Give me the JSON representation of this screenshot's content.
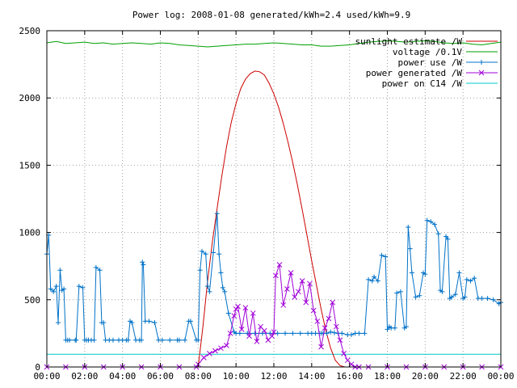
{
  "chart_data": {
    "type": "line",
    "title": "Power log: 2008-01-08 generated/kWh=2.4 used/kWh=9.9",
    "xlabel": "",
    "ylabel": "",
    "xlim": [
      0,
      24
    ],
    "ylim": [
      0,
      2500
    ],
    "grid": true,
    "legend_position": "top-right",
    "x_tick_values": [
      0,
      2,
      4,
      6,
      8,
      10,
      12,
      14,
      16,
      18,
      20,
      22,
      24
    ],
    "x_tick_labels": [
      "00:00",
      "02:00",
      "04:00",
      "06:00",
      "08:00",
      "10:00",
      "12:00",
      "14:00",
      "16:00",
      "18:00",
      "20:00",
      "22:00",
      "00:00"
    ],
    "y_tick_values": [
      0,
      500,
      1000,
      1500,
      2000,
      2500
    ],
    "y_tick_labels": [
      "0",
      "500",
      "1000",
      "1500",
      "2000",
      "2500"
    ],
    "series": [
      {
        "name": "sunlight estimate /W",
        "color": "#cc0000",
        "marker": "none",
        "x": [
          0,
          7.9,
          8.0,
          8.25,
          8.5,
          8.75,
          9.0,
          9.25,
          9.5,
          9.75,
          10.0,
          10.25,
          10.5,
          10.75,
          11.0,
          11.25,
          11.5,
          11.75,
          12.0,
          12.25,
          12.5,
          12.75,
          13.0,
          13.25,
          13.5,
          13.75,
          14.0,
          14.25,
          14.5,
          14.75,
          15.0,
          15.25,
          15.5,
          15.75,
          16.0,
          16.1,
          24
        ],
        "y": [
          0,
          0,
          0,
          300,
          640,
          930,
          1180,
          1420,
          1640,
          1820,
          1960,
          2070,
          2140,
          2180,
          2200,
          2195,
          2170,
          2110,
          2030,
          1930,
          1810,
          1670,
          1520,
          1350,
          1170,
          980,
          790,
          610,
          430,
          270,
          140,
          50,
          10,
          0,
          0,
          0,
          0
        ]
      },
      {
        "name": "voltage /0.1V",
        "color": "#00a000",
        "marker": "none",
        "x": [
          0,
          0.5,
          1,
          1.5,
          2,
          2.5,
          3,
          3.5,
          4,
          4.5,
          5,
          5.5,
          6,
          6.5,
          7,
          7.5,
          8,
          8.5,
          9,
          9.5,
          10,
          10.5,
          11,
          11.5,
          12,
          12.5,
          13,
          13.5,
          14,
          14.5,
          15,
          15.5,
          16,
          16.5,
          17,
          17.5,
          18,
          18.5,
          19,
          19.5,
          20,
          20.5,
          21,
          21.5,
          22,
          22.5,
          23,
          23.5,
          24
        ],
        "y": [
          2410,
          2420,
          2405,
          2410,
          2415,
          2405,
          2410,
          2400,
          2405,
          2410,
          2405,
          2400,
          2410,
          2405,
          2395,
          2390,
          2385,
          2380,
          2385,
          2390,
          2395,
          2400,
          2400,
          2405,
          2410,
          2405,
          2400,
          2395,
          2395,
          2385,
          2385,
          2390,
          2395,
          2405,
          2415,
          2420,
          2425,
          2420,
          2415,
          2420,
          2425,
          2420,
          2410,
          2405,
          2410,
          2400,
          2395,
          2405,
          2415
        ]
      },
      {
        "name": "power use /W",
        "color": "#0072c8",
        "marker": "plus",
        "x": [
          0,
          0.1,
          0.2,
          0.35,
          0.5,
          0.6,
          0.7,
          0.8,
          0.9,
          1.0,
          1.1,
          1.2,
          1.5,
          1.55,
          1.7,
          1.9,
          2.0,
          2.1,
          2.2,
          2.35,
          2.5,
          2.6,
          2.8,
          2.9,
          3.0,
          3.1,
          3.3,
          3.5,
          3.8,
          4.0,
          4.2,
          4.3,
          4.4,
          4.5,
          4.7,
          4.9,
          5.0,
          5.05,
          5.1,
          5.2,
          5.4,
          5.7,
          5.9,
          6.1,
          6.5,
          6.9,
          7.0,
          7.3,
          7.5,
          7.6,
          7.9,
          8.0,
          8.1,
          8.2,
          8.4,
          8.5,
          8.6,
          8.8,
          9.0,
          9.1,
          9.2,
          9.3,
          9.4,
          9.6,
          9.9,
          10.0,
          10.2,
          10.6,
          11.0,
          11.4,
          11.8,
          12.2,
          12.6,
          13.0,
          13.4,
          13.8,
          14.0,
          14.2,
          14.4,
          14.5,
          14.6,
          14.8,
          15.0,
          15.2,
          15.4,
          15.6,
          15.9,
          16.1,
          16.3,
          16.5,
          16.8,
          17.0,
          17.2,
          17.3,
          17.5,
          17.7,
          17.9,
          18.0,
          18.1,
          18.2,
          18.4,
          18.5,
          18.7,
          18.9,
          19.0,
          19.1,
          19.2,
          19.3,
          19.5,
          19.7,
          19.9,
          20.0,
          20.1,
          20.3,
          20.5,
          20.7,
          20.8,
          20.9,
          21.1,
          21.2,
          21.3,
          21.4,
          21.6,
          21.8,
          22.0,
          22.1,
          22.2,
          22.4,
          22.6,
          22.8,
          23.0,
          23.3,
          23.6,
          23.9,
          24.0
        ],
        "y": [
          840,
          980,
          580,
          560,
          600,
          330,
          720,
          570,
          580,
          200,
          200,
          200,
          200,
          200,
          600,
          590,
          200,
          200,
          200,
          200,
          200,
          740,
          720,
          330,
          330,
          200,
          200,
          200,
          200,
          200,
          200,
          200,
          340,
          330,
          200,
          200,
          200,
          780,
          760,
          340,
          340,
          330,
          200,
          200,
          200,
          200,
          200,
          200,
          340,
          340,
          200,
          200,
          720,
          860,
          840,
          600,
          560,
          850,
          1140,
          840,
          700,
          590,
          560,
          400,
          260,
          250,
          250,
          250,
          250,
          250,
          250,
          250,
          250,
          250,
          250,
          250,
          250,
          250,
          250,
          250,
          250,
          250,
          260,
          255,
          250,
          250,
          240,
          240,
          250,
          250,
          250,
          650,
          640,
          670,
          640,
          830,
          820,
          280,
          300,
          290,
          290,
          550,
          560,
          290,
          300,
          1040,
          880,
          700,
          520,
          530,
          700,
          690,
          1090,
          1080,
          1060,
          990,
          570,
          560,
          970,
          950,
          510,
          520,
          540,
          700,
          510,
          520,
          650,
          640,
          660,
          510,
          510,
          510,
          500,
          470,
          480
        ],
        "marker_every": 1
      },
      {
        "name": "power generated /W",
        "color": "#a000d8",
        "marker": "cross",
        "x": [
          0,
          1,
          2,
          3,
          4,
          5,
          6,
          7,
          7.9,
          8.0,
          8.3,
          8.6,
          8.9,
          9.2,
          9.5,
          9.7,
          9.9,
          10.0,
          10.1,
          10.3,
          10.5,
          10.7,
          10.9,
          11.1,
          11.3,
          11.5,
          11.7,
          11.9,
          12.0,
          12.1,
          12.3,
          12.5,
          12.7,
          12.9,
          13.1,
          13.3,
          13.5,
          13.7,
          13.9,
          14.1,
          14.3,
          14.5,
          14.7,
          14.9,
          15.1,
          15.3,
          15.5,
          15.7,
          15.9,
          16.1,
          16.3,
          16.5,
          17,
          18,
          19,
          20,
          21,
          22,
          23,
          24
        ],
        "y": [
          0,
          0,
          0,
          0,
          0,
          0,
          0,
          0,
          0,
          20,
          70,
          100,
          120,
          140,
          160,
          250,
          380,
          430,
          450,
          280,
          440,
          230,
          400,
          190,
          300,
          270,
          200,
          230,
          260,
          680,
          760,
          460,
          580,
          700,
          520,
          560,
          640,
          480,
          620,
          420,
          340,
          150,
          290,
          360,
          480,
          300,
          200,
          100,
          50,
          20,
          0,
          0,
          0,
          0,
          0,
          0,
          0,
          0,
          0,
          0
        ]
      },
      {
        "name": "power on C14 /W",
        "color": "#00c8c8",
        "marker": "none",
        "x": [
          0,
          2,
          4,
          6,
          8,
          10,
          12,
          14,
          16,
          18,
          20,
          22,
          24
        ],
        "y": [
          95,
          95,
          95,
          95,
          95,
          95,
          95,
          95,
          95,
          95,
          95,
          95,
          95
        ]
      }
    ]
  }
}
